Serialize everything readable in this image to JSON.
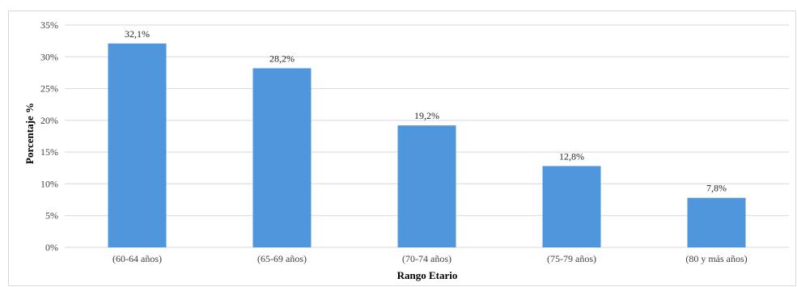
{
  "chart_data": {
    "type": "bar",
    "categories": [
      "(60-64 años)",
      "(65-69 años)",
      "(70-74 años)",
      "(75-79 años)",
      "(80 y más años)"
    ],
    "values": [
      32.1,
      28.2,
      19.2,
      12.8,
      7.8
    ],
    "data_labels": [
      "32,1%",
      "28,2%",
      "19,2%",
      "12,8%",
      "7,8%"
    ],
    "xlabel": "Rango Etario",
    "ylabel": "Porcentaje %",
    "ylim": [
      0,
      35
    ],
    "yticks": [
      0,
      5,
      10,
      15,
      20,
      25,
      30,
      35
    ],
    "ytick_labels": [
      "0%",
      "5%",
      "10%",
      "15%",
      "20%",
      "25%",
      "30%",
      "35%"
    ],
    "grid": true,
    "legend": "none",
    "bar_color": "#5096dc",
    "grid_color": "#d9d9d9"
  }
}
